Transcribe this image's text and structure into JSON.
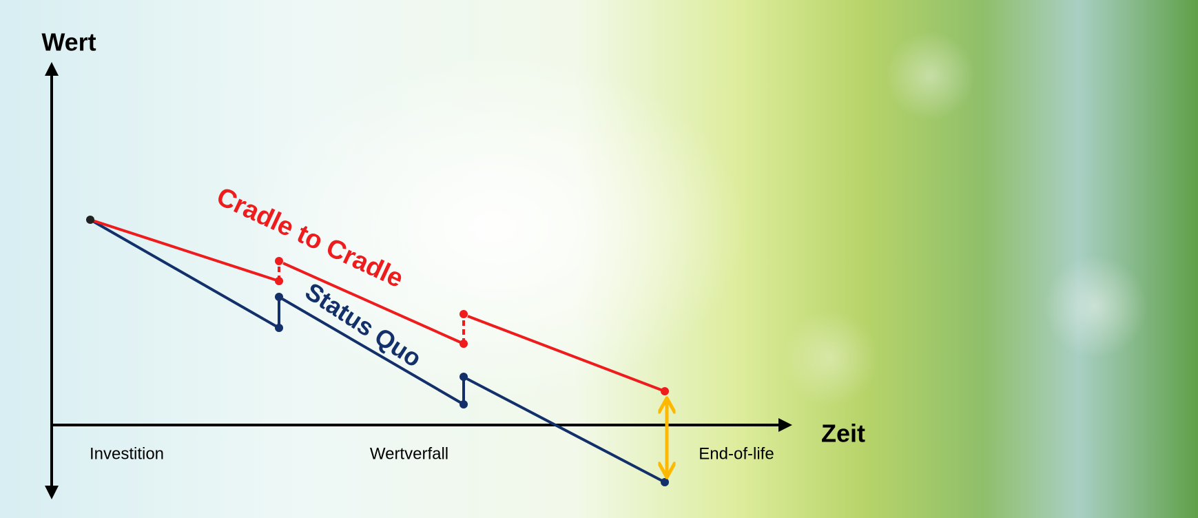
{
  "axes": {
    "y_label": "Wert",
    "x_label": "Zeit"
  },
  "phases": [
    "Investition",
    "Wertverfall",
    "End-of-life"
  ],
  "series": [
    "Cradle to Cradle",
    "Status Quo"
  ]
}
